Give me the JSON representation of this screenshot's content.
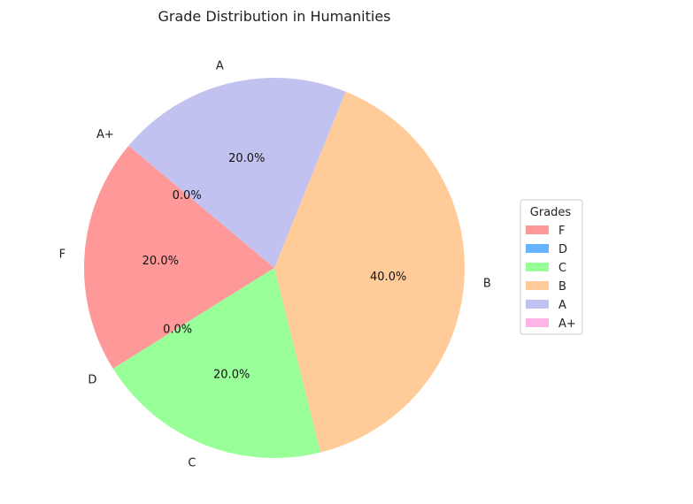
{
  "chart_data": {
    "type": "pie",
    "title": "Grade Distribution in Humanities",
    "categories": [
      "F",
      "D",
      "C",
      "B",
      "A",
      "A+"
    ],
    "values": [
      1,
      0,
      1,
      2,
      1,
      0
    ],
    "percent_labels": [
      "20.0%",
      "0.0%",
      "20.0%",
      "40.0%",
      "20.0%",
      "0.0%"
    ],
    "colors": [
      "#ff9999",
      "#66b3ff",
      "#99ff99",
      "#ffcc99",
      "#c2c2f0",
      "#ffb3e6"
    ],
    "start_angle_deg": 140,
    "direction": "counterclockwise",
    "legend": {
      "title": "Grades",
      "placement": "center-right",
      "entries": [
        "F",
        "D",
        "C",
        "B",
        "A",
        "A+"
      ]
    }
  }
}
